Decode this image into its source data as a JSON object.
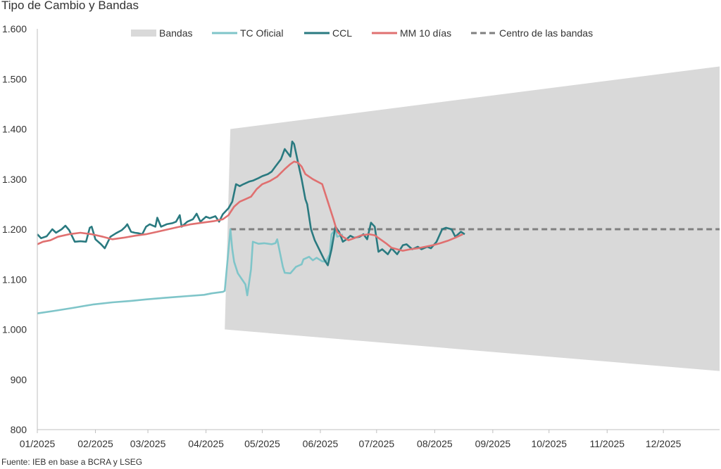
{
  "chart_data": {
    "type": "line",
    "title": "Tipo de Cambio y Bandas",
    "source": "Fuente: IEB en base a BCRA y LSEG",
    "x_axis": {
      "start": "2025-01-01",
      "end": "2025-12-31",
      "tick_labels": [
        "01/2025",
        "02/2025",
        "03/2025",
        "04/2025",
        "05/2025",
        "06/2025",
        "07/2025",
        "08/2025",
        "09/2025",
        "10/2025",
        "11/2025",
        "12/2025"
      ]
    },
    "y_axis": {
      "min": 800,
      "max": 1600,
      "step": 100,
      "tick_labels": [
        "800",
        "900",
        "1.000",
        "1.100",
        "1.200",
        "1.300",
        "1.400",
        "1.500",
        "1.600"
      ]
    },
    "legend_position": "top",
    "grid": false,
    "colors": {
      "bands": "#d9d9d9",
      "tc_oficial": "#7fc5c9",
      "ccl": "#2a7a80",
      "mm10": "#e07070",
      "centro": "#7f7f7f"
    },
    "series": [
      {
        "name": "Bandas",
        "kind": "area",
        "upper": [
          [
            "2025-04-14",
            1400
          ],
          [
            "2025-12-31",
            1525
          ]
        ],
        "lower": [
          [
            "2025-04-11",
            1000
          ],
          [
            "2025-12-31",
            917
          ]
        ]
      },
      {
        "name": "TC Oficial",
        "kind": "line",
        "points": [
          [
            "2025-01-01",
            1032
          ],
          [
            "2025-01-10",
            1037
          ],
          [
            "2025-01-20",
            1043
          ],
          [
            "2025-01-31",
            1050
          ],
          [
            "2025-02-10",
            1054
          ],
          [
            "2025-02-20",
            1057
          ],
          [
            "2025-02-28",
            1060
          ],
          [
            "2025-03-10",
            1063
          ],
          [
            "2025-03-20",
            1066
          ],
          [
            "2025-03-31",
            1069
          ],
          [
            "2025-04-04",
            1072
          ],
          [
            "2025-04-10",
            1075
          ],
          [
            "2025-04-11",
            1077
          ],
          [
            "2025-04-14",
            1200
          ],
          [
            "2025-04-15",
            1160
          ],
          [
            "2025-04-16",
            1135
          ],
          [
            "2025-04-18",
            1112
          ],
          [
            "2025-04-22",
            1090
          ],
          [
            "2025-04-23",
            1068
          ],
          [
            "2025-04-25",
            1120
          ],
          [
            "2025-04-26",
            1175
          ],
          [
            "2025-04-29",
            1171
          ],
          [
            "2025-05-02",
            1172
          ],
          [
            "2025-05-06",
            1170
          ],
          [
            "2025-05-08",
            1172
          ],
          [
            "2025-05-09",
            1180
          ],
          [
            "2025-05-12",
            1125
          ],
          [
            "2025-05-13",
            1113
          ],
          [
            "2025-05-16",
            1112
          ],
          [
            "2025-05-19",
            1125
          ],
          [
            "2025-05-22",
            1130
          ],
          [
            "2025-05-23",
            1140
          ],
          [
            "2025-05-26",
            1145
          ],
          [
            "2025-05-28",
            1138
          ],
          [
            "2025-05-30",
            1143
          ],
          [
            "2025-06-02",
            1136
          ],
          [
            "2025-06-04",
            1135
          ],
          [
            "2025-06-06",
            1150
          ],
          [
            "2025-06-07",
            1190
          ],
          [
            "2025-06-09",
            1200
          ],
          [
            "2025-06-10",
            1185
          ],
          [
            "2025-06-12",
            1188
          ],
          [
            "2025-06-13",
            1190
          ]
        ]
      },
      {
        "name": "CCL",
        "kind": "line",
        "points": [
          [
            "2025-01-01",
            1190
          ],
          [
            "2025-01-03",
            1182
          ],
          [
            "2025-01-06",
            1186
          ],
          [
            "2025-01-09",
            1200
          ],
          [
            "2025-01-11",
            1193
          ],
          [
            "2025-01-14",
            1200
          ],
          [
            "2025-01-16",
            1207
          ],
          [
            "2025-01-18",
            1198
          ],
          [
            "2025-01-21",
            1175
          ],
          [
            "2025-01-24",
            1176
          ],
          [
            "2025-01-27",
            1175
          ],
          [
            "2025-01-29",
            1203
          ],
          [
            "2025-01-30",
            1205
          ],
          [
            "2025-02-01",
            1180
          ],
          [
            "2025-02-04",
            1170
          ],
          [
            "2025-02-06",
            1162
          ],
          [
            "2025-02-09",
            1185
          ],
          [
            "2025-02-12",
            1192
          ],
          [
            "2025-02-15",
            1198
          ],
          [
            "2025-02-17",
            1205
          ],
          [
            "2025-02-18",
            1210
          ],
          [
            "2025-02-20",
            1195
          ],
          [
            "2025-02-22",
            1193
          ],
          [
            "2025-02-24",
            1192
          ],
          [
            "2025-02-26",
            1190
          ],
          [
            "2025-02-28",
            1205
          ],
          [
            "2025-03-02",
            1210
          ],
          [
            "2025-03-05",
            1205
          ],
          [
            "2025-03-06",
            1223
          ],
          [
            "2025-03-08",
            1205
          ],
          [
            "2025-03-11",
            1210
          ],
          [
            "2025-03-14",
            1212
          ],
          [
            "2025-03-16",
            1215
          ],
          [
            "2025-03-18",
            1228
          ],
          [
            "2025-03-19",
            1205
          ],
          [
            "2025-03-22",
            1215
          ],
          [
            "2025-03-25",
            1220
          ],
          [
            "2025-03-27",
            1231
          ],
          [
            "2025-03-29",
            1215
          ],
          [
            "2025-04-01",
            1225
          ],
          [
            "2025-04-03",
            1222
          ],
          [
            "2025-04-06",
            1226
          ],
          [
            "2025-04-08",
            1215
          ],
          [
            "2025-04-10",
            1230
          ],
          [
            "2025-04-13",
            1242
          ],
          [
            "2025-04-15",
            1255
          ],
          [
            "2025-04-17",
            1290
          ],
          [
            "2025-04-19",
            1286
          ],
          [
            "2025-04-21",
            1290
          ],
          [
            "2025-04-24",
            1295
          ],
          [
            "2025-04-26",
            1297
          ],
          [
            "2025-04-29",
            1302
          ],
          [
            "2025-05-01",
            1306
          ],
          [
            "2025-05-04",
            1310
          ],
          [
            "2025-05-06",
            1315
          ],
          [
            "2025-05-08",
            1325
          ],
          [
            "2025-05-11",
            1340
          ],
          [
            "2025-05-13",
            1360
          ],
          [
            "2025-05-15",
            1350
          ],
          [
            "2025-05-16",
            1345
          ],
          [
            "2025-05-17",
            1375
          ],
          [
            "2025-05-18",
            1370
          ],
          [
            "2025-05-20",
            1335
          ],
          [
            "2025-05-22",
            1300
          ],
          [
            "2025-05-24",
            1260
          ],
          [
            "2025-05-25",
            1250
          ],
          [
            "2025-05-27",
            1200
          ],
          [
            "2025-05-29",
            1178
          ],
          [
            "2025-06-01",
            1155
          ],
          [
            "2025-06-03",
            1140
          ],
          [
            "2025-06-05",
            1128
          ],
          [
            "2025-06-07",
            1160
          ],
          [
            "2025-06-09",
            1205
          ],
          [
            "2025-06-11",
            1195
          ],
          [
            "2025-06-13",
            1175
          ],
          [
            "2025-06-15",
            1180
          ],
          [
            "2025-06-17",
            1187
          ],
          [
            "2025-06-19",
            1183
          ],
          [
            "2025-06-22",
            1185
          ],
          [
            "2025-06-24",
            1190
          ],
          [
            "2025-06-26",
            1180
          ],
          [
            "2025-06-28",
            1213
          ],
          [
            "2025-06-30",
            1205
          ],
          [
            "2025-07-02",
            1155
          ],
          [
            "2025-07-04",
            1160
          ],
          [
            "2025-07-07",
            1150
          ],
          [
            "2025-07-09",
            1162
          ],
          [
            "2025-07-12",
            1150
          ],
          [
            "2025-07-15",
            1168
          ],
          [
            "2025-07-17",
            1170
          ],
          [
            "2025-07-20",
            1160
          ],
          [
            "2025-07-23",
            1165
          ],
          [
            "2025-07-25",
            1160
          ],
          [
            "2025-07-28",
            1165
          ],
          [
            "2025-07-30",
            1162
          ],
          [
            "2025-08-02",
            1175
          ],
          [
            "2025-08-05",
            1200
          ],
          [
            "2025-08-07",
            1203
          ],
          [
            "2025-08-10",
            1200
          ],
          [
            "2025-08-12",
            1185
          ],
          [
            "2025-08-15",
            1195
          ],
          [
            "2025-08-17",
            1190
          ]
        ]
      },
      {
        "name": "MM 10 días",
        "kind": "line",
        "points": [
          [
            "2025-01-01",
            1170
          ],
          [
            "2025-01-04",
            1175
          ],
          [
            "2025-01-08",
            1178
          ],
          [
            "2025-01-12",
            1185
          ],
          [
            "2025-01-18",
            1190
          ],
          [
            "2025-01-24",
            1193
          ],
          [
            "2025-01-30",
            1190
          ],
          [
            "2025-02-05",
            1185
          ],
          [
            "2025-02-10",
            1180
          ],
          [
            "2025-02-16",
            1183
          ],
          [
            "2025-02-22",
            1187
          ],
          [
            "2025-02-28",
            1190
          ],
          [
            "2025-03-06",
            1195
          ],
          [
            "2025-03-12",
            1200
          ],
          [
            "2025-03-18",
            1205
          ],
          [
            "2025-03-24",
            1210
          ],
          [
            "2025-03-30",
            1213
          ],
          [
            "2025-04-05",
            1216
          ],
          [
            "2025-04-10",
            1220
          ],
          [
            "2025-04-13",
            1228
          ],
          [
            "2025-04-16",
            1245
          ],
          [
            "2025-04-19",
            1255
          ],
          [
            "2025-04-22",
            1260
          ],
          [
            "2025-04-25",
            1265
          ],
          [
            "2025-04-28",
            1280
          ],
          [
            "2025-05-01",
            1290
          ],
          [
            "2025-05-05",
            1296
          ],
          [
            "2025-05-09",
            1305
          ],
          [
            "2025-05-13",
            1320
          ],
          [
            "2025-05-16",
            1330
          ],
          [
            "2025-05-18",
            1335
          ],
          [
            "2025-05-20",
            1333
          ],
          [
            "2025-05-22",
            1325
          ],
          [
            "2025-05-24",
            1310
          ],
          [
            "2025-05-28",
            1300
          ],
          [
            "2025-06-02",
            1290
          ],
          [
            "2025-06-05",
            1255
          ],
          [
            "2025-06-08",
            1220
          ],
          [
            "2025-06-10",
            1195
          ],
          [
            "2025-06-13",
            1185
          ],
          [
            "2025-06-16",
            1178
          ],
          [
            "2025-06-19",
            1182
          ],
          [
            "2025-06-23",
            1188
          ],
          [
            "2025-06-27",
            1190
          ],
          [
            "2025-06-30",
            1188
          ],
          [
            "2025-07-03",
            1180
          ],
          [
            "2025-07-06",
            1172
          ],
          [
            "2025-07-09",
            1163
          ],
          [
            "2025-07-12",
            1160
          ],
          [
            "2025-07-15",
            1157
          ],
          [
            "2025-07-19",
            1160
          ],
          [
            "2025-07-23",
            1162
          ],
          [
            "2025-07-27",
            1165
          ],
          [
            "2025-07-31",
            1168
          ],
          [
            "2025-08-04",
            1172
          ],
          [
            "2025-08-08",
            1177
          ],
          [
            "2025-08-12",
            1183
          ],
          [
            "2025-08-16",
            1190
          ]
        ]
      },
      {
        "name": "Centro de las bandas",
        "kind": "dashed",
        "points": [
          [
            "2025-04-14",
            1200
          ],
          [
            "2025-12-31",
            1200
          ]
        ]
      }
    ]
  }
}
